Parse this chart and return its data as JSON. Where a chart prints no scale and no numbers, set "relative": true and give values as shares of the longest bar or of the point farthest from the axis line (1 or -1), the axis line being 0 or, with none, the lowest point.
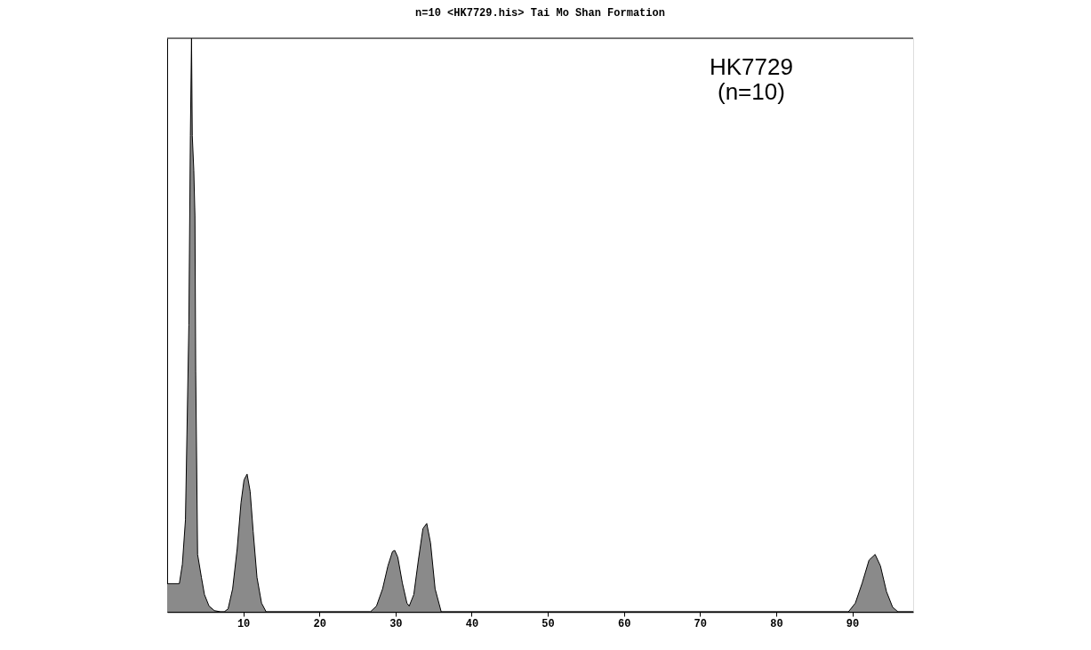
{
  "chart_data": {
    "type": "area",
    "title": "n=10  <HK7729.his> Tai Mo Shan Formation",
    "relative": true,
    "annotations": [
      "HK7729\n(n=10)"
    ],
    "xlim": [
      0,
      98
    ],
    "xticks": [
      10,
      20,
      30,
      40,
      50,
      60,
      70,
      80,
      90
    ],
    "grid": false,
    "series": [
      {
        "color": "#8a8a8a",
        "x": [
          0,
          1.6,
          2.0,
          2.4,
          2.6,
          2.85,
          3.05,
          3.2,
          3.3,
          3.5,
          3.65,
          3.75,
          4.0,
          4.5,
          4.9,
          5.5,
          6.2,
          7.0,
          7.5,
          8.0,
          8.6,
          9.2,
          9.7,
          10.1,
          10.5,
          10.9,
          11.3,
          11.8,
          12.4,
          13.0,
          26.7,
          27.5,
          28.3,
          29.0,
          29.6,
          29.9,
          30.3,
          30.9,
          31.5,
          31.8,
          32.4,
          33.0,
          33.6,
          34.1,
          34.6,
          35.2,
          36.0,
          89.5,
          90.4,
          91.3,
          92.2,
          93.0,
          93.7,
          94.5,
          95.3,
          96.0,
          98
        ],
        "values": [
          0.049,
          0.049,
          0.083,
          0.16,
          0.31,
          0.5,
          0.83,
          1.0,
          0.83,
          0.77,
          0.69,
          0.42,
          0.1,
          0.06,
          0.03,
          0.01,
          0.002,
          0,
          0,
          0.005,
          0.04,
          0.11,
          0.19,
          0.23,
          0.24,
          0.21,
          0.14,
          0.06,
          0.015,
          0,
          0,
          0.01,
          0.04,
          0.08,
          0.105,
          0.107,
          0.095,
          0.05,
          0.015,
          0.01,
          0.03,
          0.09,
          0.145,
          0.154,
          0.12,
          0.04,
          0,
          0,
          0.015,
          0.05,
          0.09,
          0.1,
          0.08,
          0.035,
          0.008,
          0,
          0
        ]
      }
    ]
  }
}
